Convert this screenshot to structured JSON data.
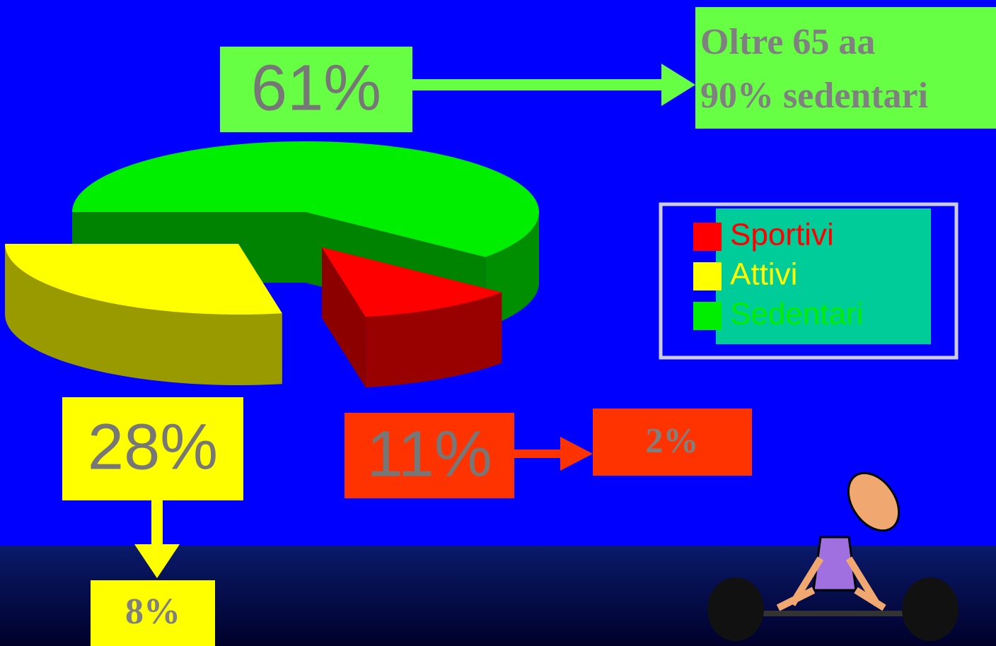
{
  "chart_data": {
    "type": "pie",
    "categories": [
      "Sportivi",
      "Attivi",
      "Sedentari"
    ],
    "values": [
      11,
      28,
      61
    ],
    "value_labels": [
      "11%",
      "28%",
      "61%"
    ],
    "colors": [
      "#ff0000",
      "#ffff00",
      "#00ee00"
    ],
    "legend": "right",
    "annotations": [
      "Oltre 65 aa",
      "90% sedentari",
      "2%",
      "8%"
    ]
  }
}
